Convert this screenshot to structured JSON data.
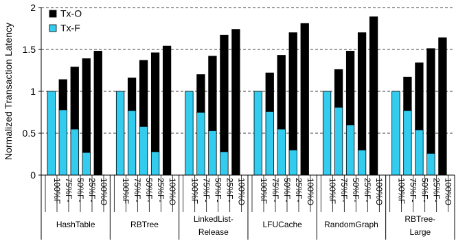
{
  "chart_data": {
    "type": "bar",
    "stacked": true,
    "title": "",
    "xlabel": "",
    "ylabel": "Normalized Transaction  Latency",
    "ylim": [
      0,
      2
    ],
    "yticks": [
      "0",
      "0.5",
      "1",
      "1.5",
      "2"
    ],
    "grid": "horizontal-dashed",
    "legend_position": "top-left",
    "colors": {
      "Tx-O": "#000000",
      "Tx-F": "#33ccee"
    },
    "bar_labels": [
      "100%F",
      "75%F-",
      "50%F-",
      "25%F-",
      "100%O"
    ],
    "groups": [
      {
        "label_lines": [
          "HashTable"
        ],
        "tx_f": [
          1.0,
          0.78,
          0.55,
          0.27,
          0.0
        ],
        "tx_o": [
          0.0,
          0.36,
          0.74,
          1.12,
          1.48
        ]
      },
      {
        "label_lines": [
          "RBTree"
        ],
        "tx_f": [
          1.0,
          0.77,
          0.58,
          0.28,
          0.0
        ],
        "tx_o": [
          0.0,
          0.39,
          0.79,
          1.18,
          1.54
        ]
      },
      {
        "label_lines": [
          "LinkedList-",
          "Release"
        ],
        "tx_f": [
          1.0,
          0.75,
          0.53,
          0.28,
          0.0
        ],
        "tx_o": [
          0.0,
          0.45,
          0.89,
          1.39,
          1.74
        ]
      },
      {
        "label_lines": [
          "LFUCache"
        ],
        "tx_f": [
          1.0,
          0.76,
          0.55,
          0.3,
          0.0
        ],
        "tx_o": [
          0.0,
          0.46,
          0.88,
          1.4,
          1.81
        ]
      },
      {
        "label_lines": [
          "RandomGraph"
        ],
        "tx_f": [
          1.0,
          0.81,
          0.6,
          0.3,
          0.0
        ],
        "tx_o": [
          0.0,
          0.45,
          0.88,
          1.4,
          1.89
        ]
      },
      {
        "label_lines": [
          "RBTree-",
          "Large"
        ],
        "tx_f": [
          1.0,
          0.77,
          0.54,
          0.26,
          0.0
        ],
        "tx_o": [
          0.0,
          0.4,
          0.8,
          1.25,
          1.64
        ]
      }
    ],
    "series": [
      {
        "name": "Tx-O"
      },
      {
        "name": "Tx-F"
      }
    ]
  }
}
